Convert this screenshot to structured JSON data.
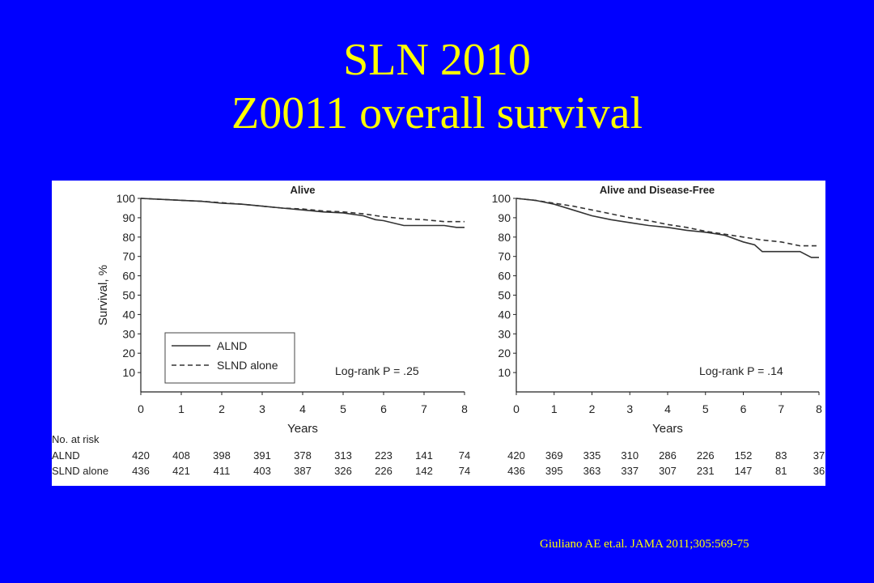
{
  "slide": {
    "title_line1": "SLN 2010",
    "title_line2": "Z0011 overall survival",
    "citation": "Giuliano AE et.al. JAMA 2011;305:569-75",
    "background_color": "#0000ff",
    "title_color": "#ffff00"
  },
  "chart_data": [
    {
      "type": "line",
      "title": "Alive",
      "xlabel": "Years",
      "ylabel": "Survival, %",
      "xlim": [
        0,
        8
      ],
      "ylim": [
        0,
        100
      ],
      "x_ticks": [
        0,
        1,
        2,
        3,
        4,
        5,
        6,
        7,
        8
      ],
      "y_ticks": [
        10,
        20,
        30,
        40,
        50,
        60,
        70,
        80,
        90,
        100
      ],
      "grid": false,
      "legend_position": "bottom-left",
      "annotation": "Log-rank P = .25",
      "series": [
        {
          "name": "ALND",
          "style": "solid",
          "x": [
            0,
            0.5,
            1,
            1.5,
            2,
            2.5,
            3,
            3.5,
            4,
            4.5,
            5,
            5.5,
            5.8,
            6,
            6.3,
            6.5,
            7,
            7.5,
            7.8,
            8
          ],
          "y": [
            100,
            99.5,
            99,
            98.5,
            97.5,
            97,
            96,
            95,
            94,
            93,
            92.5,
            91,
            89,
            88.5,
            87,
            86,
            86,
            86,
            85,
            85
          ]
        },
        {
          "name": "SLND alone",
          "style": "dashed",
          "x": [
            0,
            0.5,
            1,
            1.5,
            2,
            2.5,
            3,
            3.5,
            4,
            4.5,
            5,
            5.5,
            6,
            6.5,
            7,
            7.5,
            8
          ],
          "y": [
            100,
            99.5,
            99,
            98.5,
            97.8,
            97,
            96,
            95,
            94.5,
            93.5,
            93,
            92,
            90.5,
            89.5,
            89,
            88,
            88
          ]
        }
      ],
      "risk_table": {
        "header": "No. at risk",
        "rows": [
          {
            "label": "ALND",
            "values": [
              "420",
              "408",
              "398",
              "391",
              "378",
              "313",
              "223",
              "141",
              "74"
            ]
          },
          {
            "label": "SLND alone",
            "values": [
              "436",
              "421",
              "411",
              "403",
              "387",
              "326",
              "226",
              "142",
              "74"
            ]
          }
        ]
      }
    },
    {
      "type": "line",
      "title": "Alive and Disease-Free",
      "xlabel": "Years",
      "ylabel": "",
      "xlim": [
        0,
        8
      ],
      "ylim": [
        0,
        100
      ],
      "x_ticks": [
        0,
        1,
        2,
        3,
        4,
        5,
        6,
        7,
        8
      ],
      "y_ticks": [
        10,
        20,
        30,
        40,
        50,
        60,
        70,
        80,
        90,
        100
      ],
      "grid": false,
      "annotation": "Log-rank P = .14",
      "series": [
        {
          "name": "ALND",
          "style": "solid",
          "x": [
            0,
            0.5,
            1,
            1.5,
            2,
            2.5,
            3,
            3.5,
            4,
            4.5,
            5,
            5.5,
            6,
            6.3,
            6.5,
            7,
            7.5,
            7.8,
            8
          ],
          "y": [
            100,
            99,
            97,
            94,
            91,
            89,
            87.5,
            86,
            85,
            83.5,
            82.5,
            81,
            77.5,
            76,
            72.5,
            72.5,
            72.5,
            69.5,
            69.5
          ]
        },
        {
          "name": "SLND alone",
          "style": "dashed",
          "x": [
            0,
            0.5,
            1,
            1.5,
            2,
            2.5,
            3,
            3.5,
            4,
            4.5,
            5,
            5.5,
            6,
            6.5,
            7,
            7.5,
            8
          ],
          "y": [
            100,
            99,
            97.5,
            96,
            94,
            92,
            90,
            88.5,
            86.5,
            85,
            83,
            81.5,
            80,
            78.5,
            77.5,
            75.5,
            75.5
          ]
        }
      ],
      "risk_table": {
        "rows": [
          {
            "label": "ALND",
            "values": [
              "420",
              "369",
              "335",
              "310",
              "286",
              "226",
              "152",
              "83",
              "37"
            ]
          },
          {
            "label": "SLND alone",
            "values": [
              "436",
              "395",
              "363",
              "337",
              "307",
              "231",
              "147",
              "81",
              "36"
            ]
          }
        ]
      }
    }
  ]
}
